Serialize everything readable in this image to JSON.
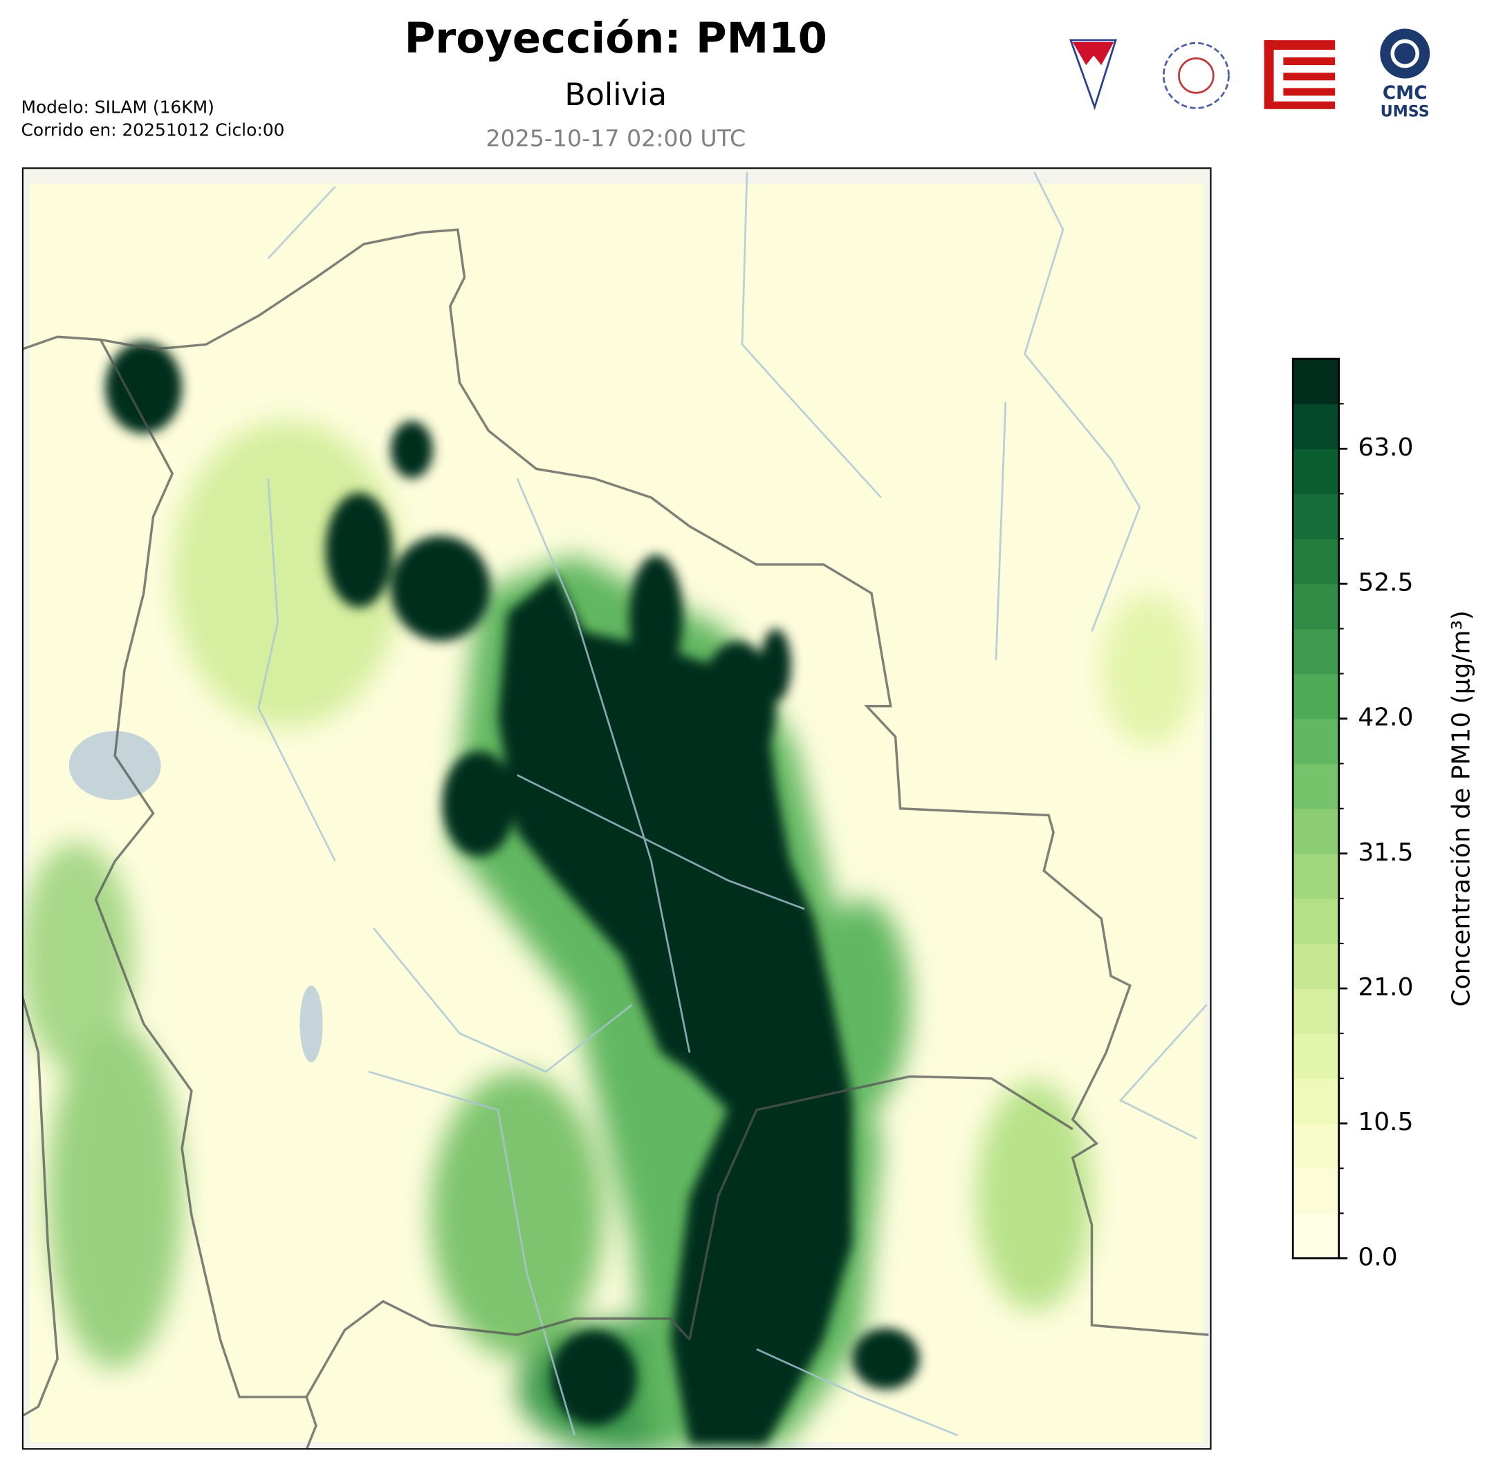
{
  "header": {
    "title": "Proyección: PM10",
    "subtitle": "Bolivia",
    "timestamp": "2025-10-17 02:00 UTC",
    "model": "Modelo: SILAM (16KM)",
    "run": "Corrido en: 20251012 Ciclo:00"
  },
  "logos": {
    "cmc": "CMC",
    "umss": "UMSS"
  },
  "colorbar": {
    "label": "Concentración de PM10 (µg/m³)",
    "lim": [
      0,
      70
    ],
    "step": 3.5,
    "ticks": [
      0.0,
      10.5,
      21.0,
      31.5,
      42.0,
      52.5,
      63.0
    ],
    "tick_labels": [
      "0.0",
      "10.5",
      "21.0",
      "31.5",
      "42.0",
      "52.5",
      "63.0"
    ],
    "colors": [
      "#ffffe5",
      "#fcfdd8",
      "#f7fcc9",
      "#eff9ba",
      "#e3f4ab",
      "#d5ee9f",
      "#c6e893",
      "#b4e087",
      "#a1d77d",
      "#8ccd74",
      "#77c36b",
      "#62b862",
      "#4fab58",
      "#3f9c4f",
      "#318c45",
      "#237d3d",
      "#156e37",
      "#0a5e30",
      "#04492a",
      "#002e1d"
    ]
  }
}
